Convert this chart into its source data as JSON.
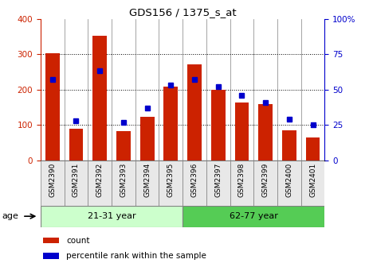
{
  "title": "GDS156 / 1375_s_at",
  "samples": [
    "GSM2390",
    "GSM2391",
    "GSM2392",
    "GSM2393",
    "GSM2394",
    "GSM2395",
    "GSM2396",
    "GSM2397",
    "GSM2398",
    "GSM2399",
    "GSM2400",
    "GSM2401"
  ],
  "counts": [
    302,
    88,
    352,
    82,
    122,
    208,
    270,
    200,
    163,
    158,
    85,
    65
  ],
  "percentiles": [
    57,
    28,
    63,
    27,
    37,
    53,
    57,
    52,
    46,
    41,
    29,
    25
  ],
  "group1_label": "21-31 year",
  "group2_label": "62-77 year",
  "group1_indices": [
    0,
    1,
    2,
    3,
    4,
    5
  ],
  "group2_indices": [
    6,
    7,
    8,
    9,
    10,
    11
  ],
  "group1_color": "#ccffcc",
  "group2_color": "#55cc55",
  "bar_color": "#cc2200",
  "dot_color": "#0000cc",
  "ylim_left": [
    0,
    400
  ],
  "ylim_right": [
    0,
    100
  ],
  "age_label": "age",
  "legend_count": "count",
  "legend_percentile": "percentile rank within the sample",
  "yticks_left": [
    0,
    100,
    200,
    300,
    400
  ],
  "yticks_right": [
    0,
    25,
    50,
    75,
    100
  ],
  "right_tick_labels": [
    "0",
    "25",
    "50",
    "75",
    "100%"
  ],
  "bg_color": "#ffffff",
  "xtick_bg": "#e8e8e8"
}
